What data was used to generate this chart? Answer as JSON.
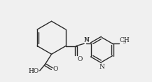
{
  "bg_color": "#f0f0f0",
  "bond_color": "#2a2a2a",
  "bond_lw": 1.0,
  "text_color": "#1a1a1a",
  "font_size": 6.5,
  "fig_width": 2.17,
  "fig_height": 1.17,
  "dpi": 100,
  "xlim": [
    0.0,
    1.0
  ],
  "ylim": [
    0.1,
    0.95
  ]
}
